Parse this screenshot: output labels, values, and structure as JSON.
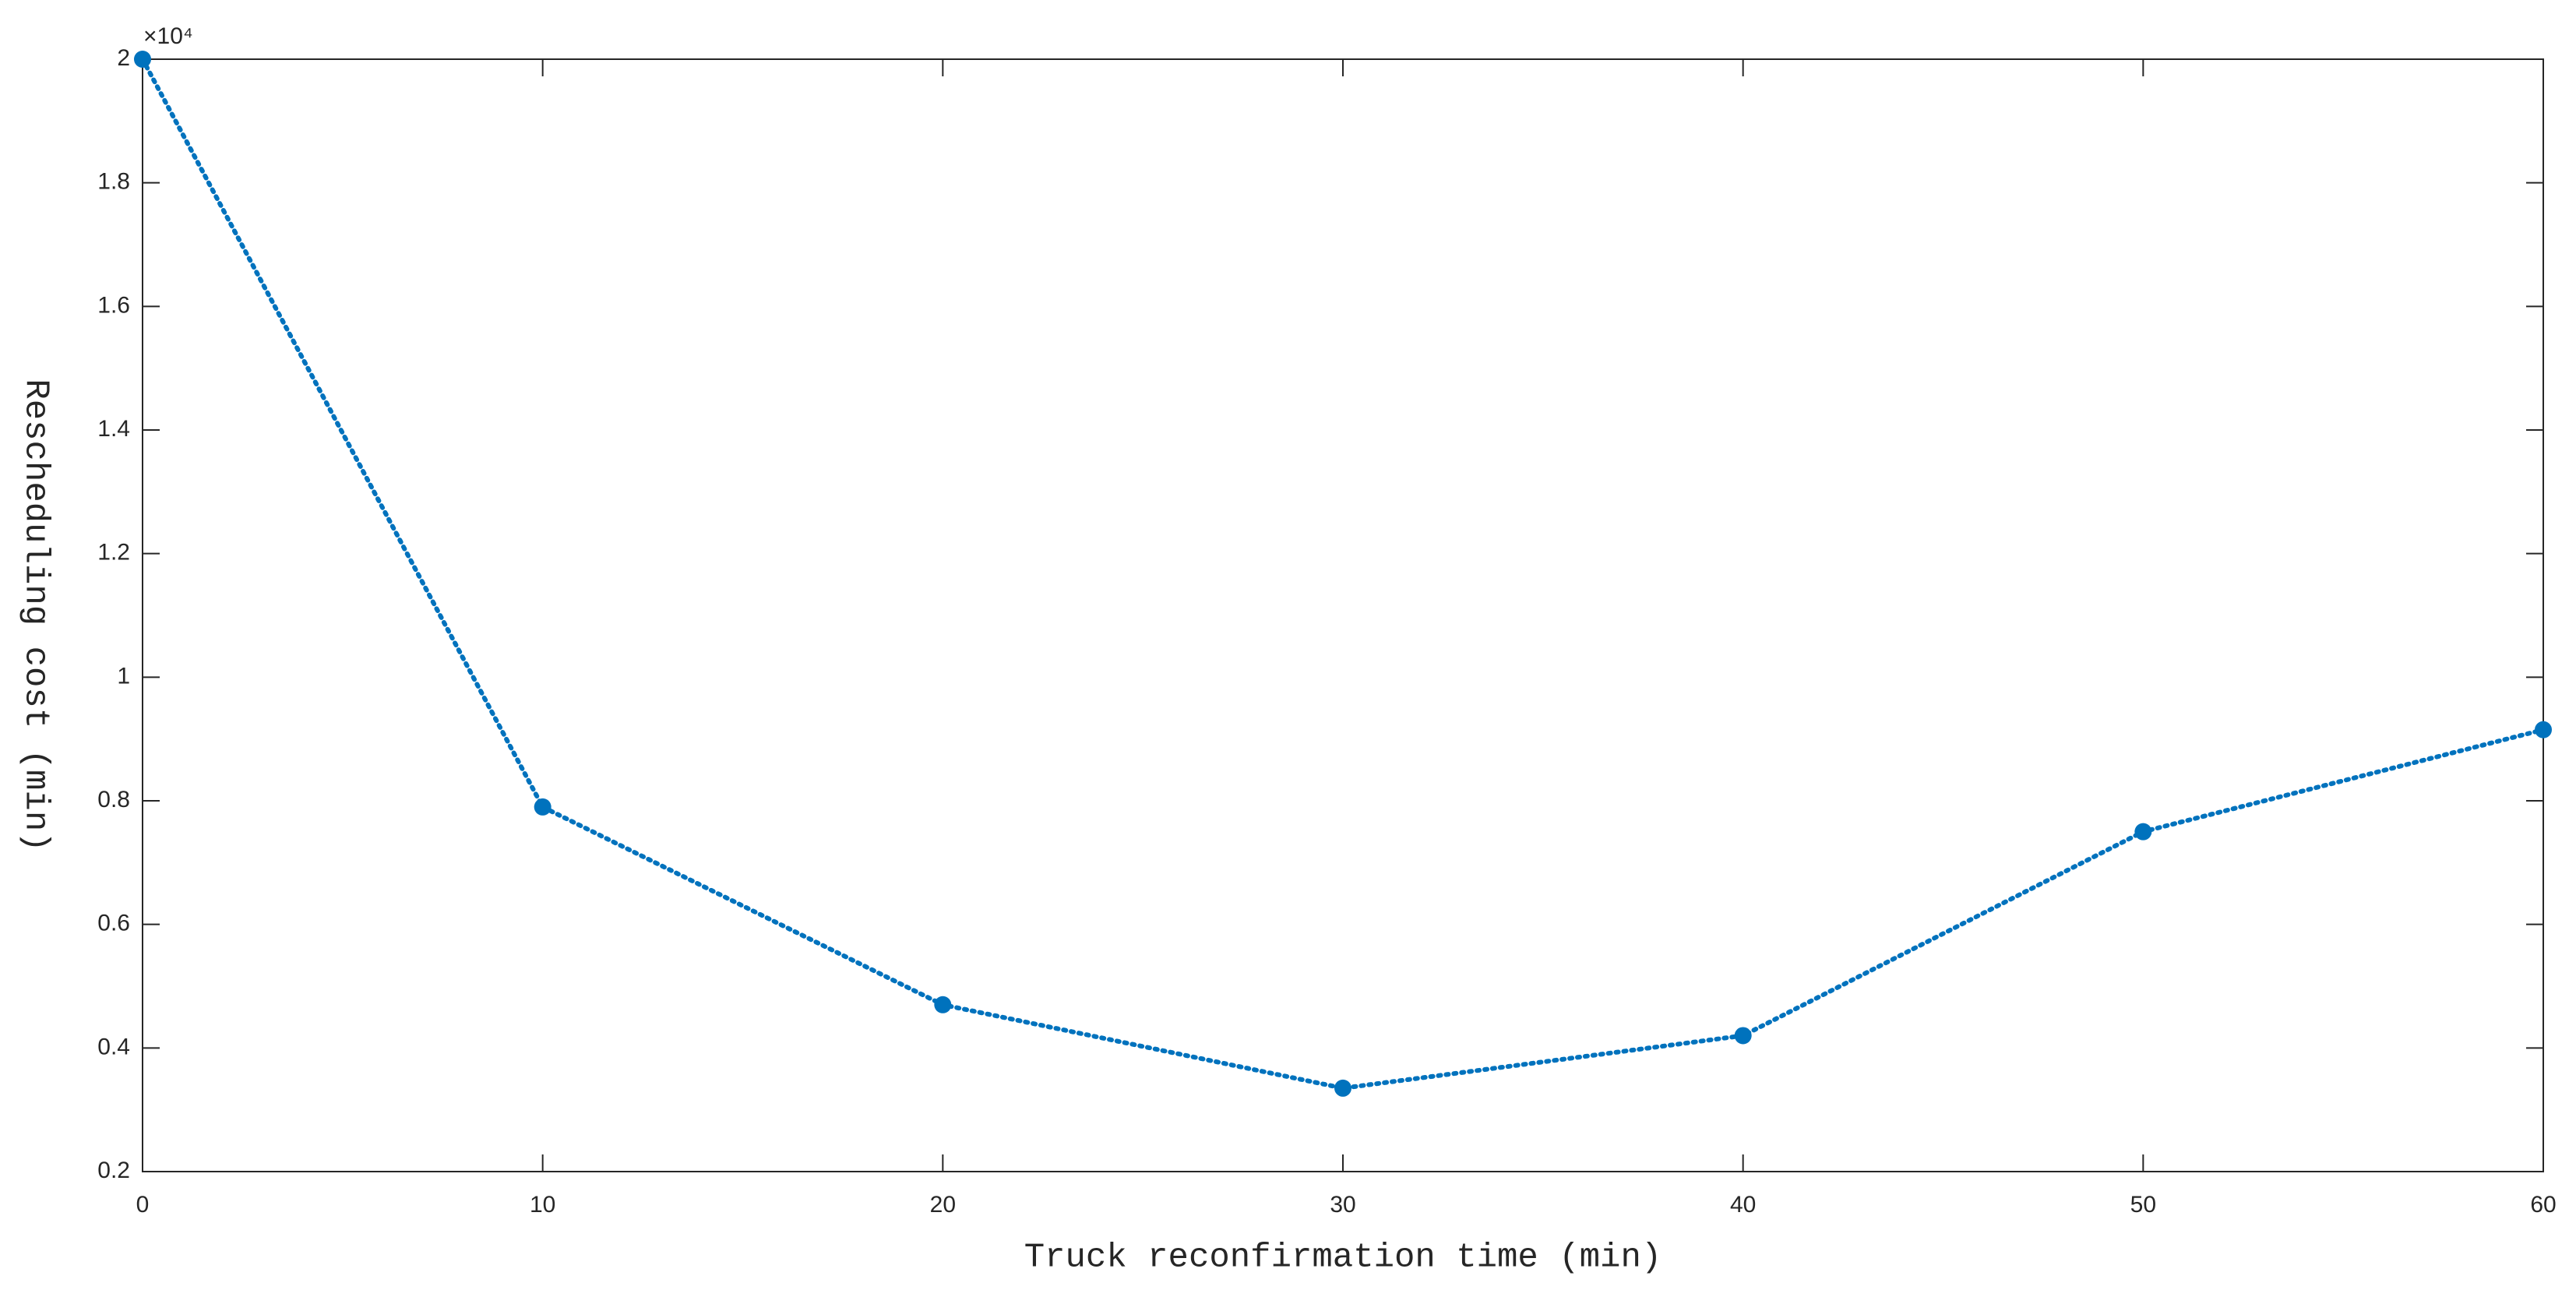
{
  "chart_data": {
    "type": "line",
    "x_label": "Truck reconfirmation time (min)",
    "y_label": "Rescheduling cost (min)",
    "y_multiplier_label": "×10⁴",
    "x": [
      0,
      10,
      20,
      30,
      40,
      50,
      60
    ],
    "series": [
      {
        "color": "#0072bd",
        "values": [
          2.0,
          0.79,
          0.47,
          0.335,
          0.42,
          0.75,
          0.915
        ]
      }
    ],
    "xlim": [
      0,
      60
    ],
    "xticks": [
      0,
      10,
      20,
      30,
      40,
      50,
      60
    ],
    "ylim": [
      0.2,
      2
    ],
    "yticks": [
      0.2,
      0.4,
      0.6,
      0.8,
      1,
      1.2,
      1.4,
      1.6,
      1.8,
      2
    ],
    "grid": false
  }
}
